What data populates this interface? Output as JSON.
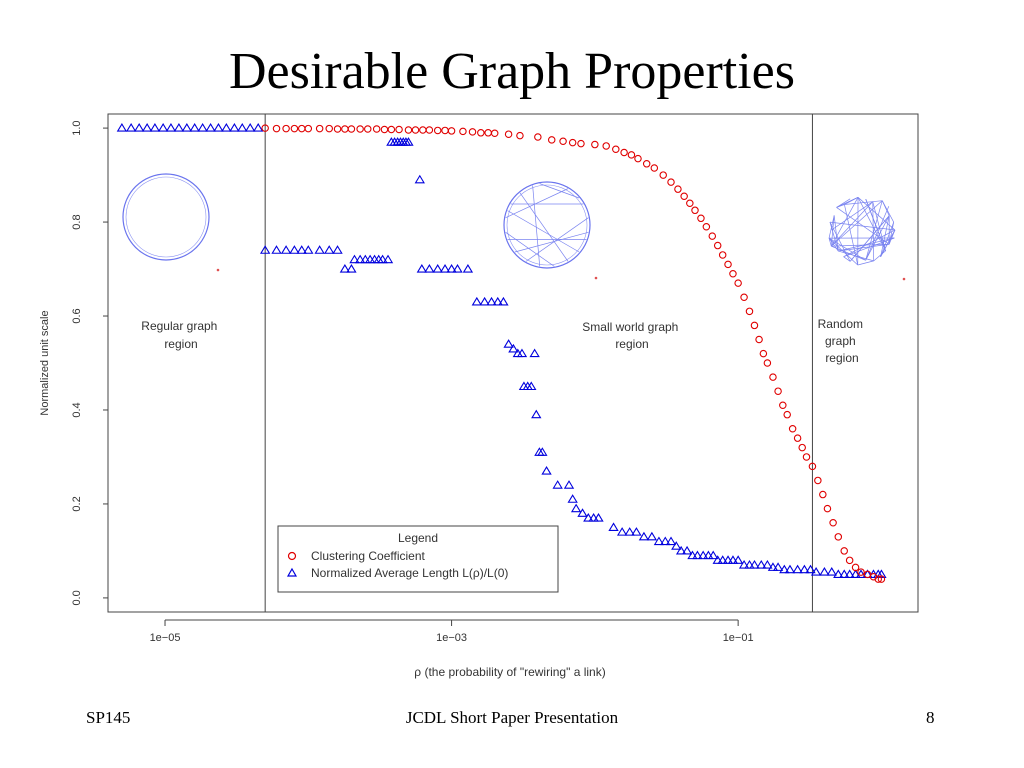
{
  "slide": {
    "title": "Desirable Graph Properties",
    "footer_left": "SP145",
    "footer_center": "JCDL Short Paper Presentation",
    "footer_right": "8"
  },
  "chart_data": {
    "type": "scatter",
    "x_scale": "log",
    "xlim": [
      4e-06,
      1.8
    ],
    "ylim": [
      -0.03,
      1.03
    ],
    "xlabel": "ρ (the probability of \"rewiring\" a link)",
    "ylabel": "Normalized unit scale",
    "x_ticks": [
      1e-05,
      0.001,
      0.1
    ],
    "x_tick_labels": [
      "1e−05",
      "1e−03",
      "1e−01"
    ],
    "y_ticks": [
      0.0,
      0.2,
      0.4,
      0.6,
      0.8,
      1.0
    ],
    "y_tick_labels": [
      "0.0",
      "0.2",
      "0.4",
      "0.6",
      "0.8",
      "1.0"
    ],
    "region_boundaries": [
      5e-05,
      0.33
    ],
    "regions": [
      {
        "lines": [
          "Regular graph",
          "region"
        ]
      },
      {
        "lines": [
          "Small world graph",
          "region"
        ]
      },
      {
        "lines": [
          "Random",
          "graph",
          "region"
        ]
      }
    ],
    "legend": {
      "title": "Legend",
      "placement": "bottom-center",
      "entries": [
        "Clustering Coefficient",
        "Normalized Average Length L(ρ)/L(0)"
      ]
    },
    "colors": {
      "clustering": "#e00000",
      "length": "#0000dd",
      "graph_edges": "#6a74ee",
      "frame": "#444444"
    },
    "series": [
      {
        "marker": "circle",
        "points": [
          [
            5e-05,
            1.0
          ],
          [
            6e-05,
            0.999
          ],
          [
            7e-05,
            0.999
          ],
          [
            8e-05,
            0.999
          ],
          [
            9e-05,
            0.999
          ],
          [
            0.0001,
            0.999
          ],
          [
            0.00012,
            0.999
          ],
          [
            0.00014,
            0.999
          ],
          [
            0.00016,
            0.998
          ],
          [
            0.00018,
            0.998
          ],
          [
            0.0002,
            0.998
          ],
          [
            0.00023,
            0.998
          ],
          [
            0.00026,
            0.998
          ],
          [
            0.0003,
            0.998
          ],
          [
            0.00034,
            0.997
          ],
          [
            0.00038,
            0.997
          ],
          [
            0.00043,
            0.997
          ],
          [
            0.0005,
            0.996
          ],
          [
            0.00056,
            0.996
          ],
          [
            0.00063,
            0.996
          ],
          [
            0.0007,
            0.996
          ],
          [
            0.0008,
            0.995
          ],
          [
            0.0009,
            0.995
          ],
          [
            0.001,
            0.994
          ],
          [
            0.0012,
            0.993
          ],
          [
            0.0014,
            0.992
          ],
          [
            0.0016,
            0.99
          ],
          [
            0.0018,
            0.99
          ],
          [
            0.002,
            0.989
          ],
          [
            0.0025,
            0.987
          ],
          [
            0.003,
            0.984
          ],
          [
            0.004,
            0.981
          ],
          [
            0.005,
            0.975
          ],
          [
            0.006,
            0.972
          ],
          [
            0.007,
            0.969
          ],
          [
            0.008,
            0.967
          ],
          [
            0.01,
            0.965
          ],
          [
            0.012,
            0.962
          ],
          [
            0.014,
            0.955
          ],
          [
            0.016,
            0.948
          ],
          [
            0.018,
            0.943
          ],
          [
            0.02,
            0.935
          ],
          [
            0.023,
            0.924
          ],
          [
            0.026,
            0.915
          ],
          [
            0.03,
            0.9
          ],
          [
            0.034,
            0.885
          ],
          [
            0.038,
            0.87
          ],
          [
            0.042,
            0.855
          ],
          [
            0.046,
            0.84
          ],
          [
            0.05,
            0.825
          ],
          [
            0.055,
            0.808
          ],
          [
            0.06,
            0.79
          ],
          [
            0.066,
            0.77
          ],
          [
            0.072,
            0.75
          ],
          [
            0.078,
            0.73
          ],
          [
            0.085,
            0.71
          ],
          [
            0.092,
            0.69
          ],
          [
            0.1,
            0.67
          ],
          [
            0.11,
            0.64
          ],
          [
            0.12,
            0.61
          ],
          [
            0.13,
            0.58
          ],
          [
            0.14,
            0.55
          ],
          [
            0.15,
            0.52
          ],
          [
            0.16,
            0.5
          ],
          [
            0.175,
            0.47
          ],
          [
            0.19,
            0.44
          ],
          [
            0.205,
            0.41
          ],
          [
            0.22,
            0.39
          ],
          [
            0.24,
            0.36
          ],
          [
            0.26,
            0.34
          ],
          [
            0.28,
            0.32
          ],
          [
            0.3,
            0.3
          ],
          [
            0.33,
            0.28
          ],
          [
            0.36,
            0.25
          ],
          [
            0.39,
            0.22
          ],
          [
            0.42,
            0.19
          ],
          [
            0.46,
            0.16
          ],
          [
            0.5,
            0.13
          ],
          [
            0.55,
            0.1
          ],
          [
            0.6,
            0.08
          ],
          [
            0.66,
            0.065
          ],
          [
            0.72,
            0.055
          ],
          [
            0.8,
            0.05
          ],
          [
            0.88,
            0.045
          ],
          [
            0.95,
            0.04
          ],
          [
            1.0,
            0.04
          ]
        ]
      },
      {
        "marker": "triangle",
        "points": [
          [
            5e-06,
            1.0
          ],
          [
            5.8e-06,
            1.0
          ],
          [
            6.6e-06,
            1.0
          ],
          [
            7.5e-06,
            1.0
          ],
          [
            8.5e-06,
            1.0
          ],
          [
            9.7e-06,
            1.0
          ],
          [
            1.1e-05,
            1.0
          ],
          [
            1.25e-05,
            1.0
          ],
          [
            1.42e-05,
            1.0
          ],
          [
            1.61e-05,
            1.0
          ],
          [
            1.83e-05,
            1.0
          ],
          [
            2.08e-05,
            1.0
          ],
          [
            2.36e-05,
            1.0
          ],
          [
            2.68e-05,
            1.0
          ],
          [
            3.05e-05,
            1.0
          ],
          [
            3.46e-05,
            1.0
          ],
          [
            3.93e-05,
            1.0
          ],
          [
            4.47e-05,
            1.0
          ],
          [
            5e-05,
            0.74
          ],
          [
            6e-05,
            0.74
          ],
          [
            7e-05,
            0.74
          ],
          [
            8e-05,
            0.74
          ],
          [
            9e-05,
            0.74
          ],
          [
            0.0001,
            0.74
          ],
          [
            0.00012,
            0.74
          ],
          [
            0.00014,
            0.74
          ],
          [
            0.00016,
            0.74
          ],
          [
            0.00018,
            0.7
          ],
          [
            0.0002,
            0.7
          ],
          [
            0.00021,
            0.72
          ],
          [
            0.00023,
            0.72
          ],
          [
            0.00025,
            0.72
          ],
          [
            0.00027,
            0.72
          ],
          [
            0.00029,
            0.72
          ],
          [
            0.00031,
            0.72
          ],
          [
            0.00033,
            0.72
          ],
          [
            0.00036,
            0.72
          ],
          [
            0.00038,
            0.97
          ],
          [
            0.0004,
            0.97
          ],
          [
            0.00042,
            0.97
          ],
          [
            0.00044,
            0.97
          ],
          [
            0.00046,
            0.97
          ],
          [
            0.00048,
            0.97
          ],
          [
            0.0005,
            0.97
          ],
          [
            0.0006,
            0.89
          ],
          [
            0.00062,
            0.7
          ],
          [
            0.0007,
            0.7
          ],
          [
            0.0008,
            0.7
          ],
          [
            0.0009,
            0.7
          ],
          [
            0.001,
            0.7
          ],
          [
            0.0011,
            0.7
          ],
          [
            0.0013,
            0.7
          ],
          [
            0.0015,
            0.63
          ],
          [
            0.0017,
            0.63
          ],
          [
            0.0019,
            0.63
          ],
          [
            0.0021,
            0.63
          ],
          [
            0.0023,
            0.63
          ],
          [
            0.0025,
            0.54
          ],
          [
            0.0027,
            0.53
          ],
          [
            0.0029,
            0.52
          ],
          [
            0.0031,
            0.52
          ],
          [
            0.0032,
            0.45
          ],
          [
            0.0034,
            0.45
          ],
          [
            0.0036,
            0.45
          ],
          [
            0.0038,
            0.52
          ],
          [
            0.0039,
            0.39
          ],
          [
            0.0041,
            0.31
          ],
          [
            0.0043,
            0.31
          ],
          [
            0.0046,
            0.27
          ],
          [
            0.0055,
            0.24
          ],
          [
            0.0066,
            0.24
          ],
          [
            0.007,
            0.21
          ],
          [
            0.0074,
            0.19
          ],
          [
            0.0082,
            0.18
          ],
          [
            0.009,
            0.17
          ],
          [
            0.0098,
            0.17
          ],
          [
            0.0106,
            0.17
          ],
          [
            0.0135,
            0.15
          ],
          [
            0.0155,
            0.14
          ],
          [
            0.0175,
            0.14
          ],
          [
            0.0195,
            0.14
          ],
          [
            0.022,
            0.13
          ],
          [
            0.025,
            0.13
          ],
          [
            0.028,
            0.12
          ],
          [
            0.031,
            0.12
          ],
          [
            0.034,
            0.12
          ],
          [
            0.037,
            0.11
          ],
          [
            0.04,
            0.1
          ],
          [
            0.044,
            0.1
          ],
          [
            0.048,
            0.09
          ],
          [
            0.052,
            0.09
          ],
          [
            0.057,
            0.09
          ],
          [
            0.062,
            0.09
          ],
          [
            0.067,
            0.09
          ],
          [
            0.072,
            0.08
          ],
          [
            0.078,
            0.08
          ],
          [
            0.085,
            0.08
          ],
          [
            0.092,
            0.08
          ],
          [
            0.1,
            0.08
          ],
          [
            0.11,
            0.07
          ],
          [
            0.12,
            0.07
          ],
          [
            0.13,
            0.07
          ],
          [
            0.145,
            0.07
          ],
          [
            0.16,
            0.07
          ],
          [
            0.175,
            0.065
          ],
          [
            0.19,
            0.065
          ],
          [
            0.21,
            0.06
          ],
          [
            0.23,
            0.06
          ],
          [
            0.26,
            0.06
          ],
          [
            0.29,
            0.06
          ],
          [
            0.32,
            0.06
          ],
          [
            0.35,
            0.055
          ],
          [
            0.4,
            0.055
          ],
          [
            0.45,
            0.055
          ],
          [
            0.5,
            0.05
          ],
          [
            0.55,
            0.05
          ],
          [
            0.6,
            0.05
          ],
          [
            0.66,
            0.05
          ],
          [
            0.72,
            0.05
          ],
          [
            0.8,
            0.05
          ],
          [
            0.88,
            0.05
          ],
          [
            0.95,
            0.05
          ],
          [
            1.0,
            0.05
          ]
        ]
      }
    ]
  }
}
